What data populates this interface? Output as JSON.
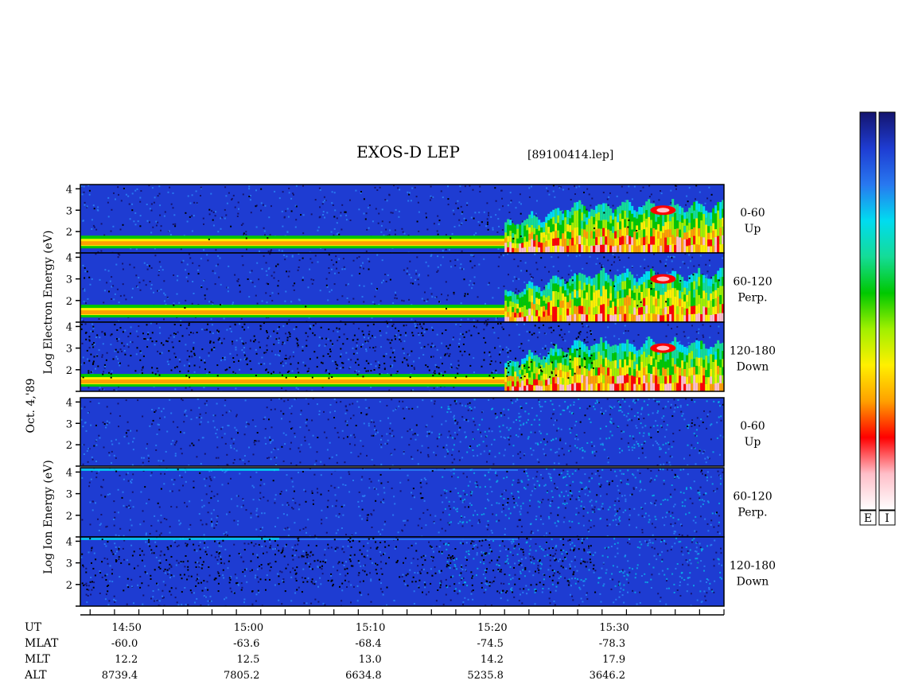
{
  "title": "EXOS-D LEP",
  "file_label": "[89100414.lep]",
  "date_label": "Oct. 4,'89",
  "electron_ylabel": "Log   Electron   Energy (eV)",
  "ion_ylabel": "Log   Ion   Energy (eV)",
  "colorbar_labels": [
    "E",
    "I"
  ],
  "colorbar_colors": [
    "#14146e",
    "#1e3cd2",
    "#2878f0",
    "#00dcf0",
    "#14dc96",
    "#00c800",
    "#a0f000",
    "#fff000",
    "#ffa000",
    "#ff0000",
    "#ffbec8",
    "#ffffff"
  ],
  "chart_data": [
    {
      "type": "heatmap",
      "species": "Electron",
      "panels": [
        {
          "pitch_angle": "0-60",
          "direction": "Up"
        },
        {
          "pitch_angle": "60-120",
          "direction": "Perp."
        },
        {
          "pitch_angle": "120-180",
          "direction": "Down"
        }
      ],
      "y_ticks": [
        "1",
        "2",
        "3",
        "4"
      ],
      "ylim": [
        1,
        4.2
      ],
      "x_range_minutes": [
        14.77,
        15.65
      ],
      "features": {
        "low_energy_band_log_eV": 1.4,
        "precipitation_onset_UT": "15:21",
        "peak_feature_UT": "15:34",
        "peak_feature_log_eV": 3.0
      }
    },
    {
      "type": "heatmap",
      "species": "Ion",
      "panels": [
        {
          "pitch_angle": "0-60",
          "direction": "Up"
        },
        {
          "pitch_angle": "60-120",
          "direction": "Perp."
        },
        {
          "pitch_angle": "120-180",
          "direction": "Down"
        }
      ],
      "y_ticks": [
        "1",
        "2",
        "3",
        "4"
      ],
      "ylim": [
        1,
        4.2
      ],
      "x_range_minutes": [
        14.77,
        15.65
      ]
    }
  ],
  "x_axis": {
    "tick_labels": [
      "14:50",
      "15:00",
      "15:10",
      "15:20",
      "15:30"
    ]
  },
  "ephemeris": [
    {
      "label": "UT",
      "values": [
        "14:50",
        "15:00",
        "15:10",
        "15:20",
        "15:30"
      ]
    },
    {
      "label": "MLAT",
      "values": [
        "-60.0",
        "-63.6",
        "-68.4",
        "-74.5",
        "-78.3"
      ]
    },
    {
      "label": "MLT",
      "values": [
        "12.2",
        "12.5",
        "13.0",
        "14.2",
        "17.9"
      ]
    },
    {
      "label": "ALT",
      "values": [
        "8739.4",
        "7805.2",
        "6634.8",
        "5235.8",
        "3646.2"
      ]
    }
  ]
}
